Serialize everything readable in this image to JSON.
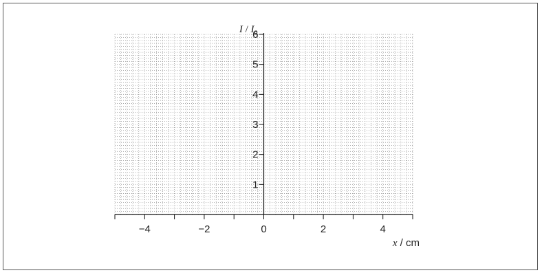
{
  "chart_data": {
    "type": "line",
    "title": "",
    "xlabel": {
      "var": "x",
      "sep": " / ",
      "unit": "cm"
    },
    "ylabel": {
      "var": "I",
      "sep": " / ",
      "unit": "I",
      "subscript": "0"
    },
    "xlim": [
      -5,
      5
    ],
    "ylim": [
      0,
      6
    ],
    "x_ticks": [
      -4,
      -2,
      0,
      2,
      4
    ],
    "x_tick_labels": [
      "−4",
      "−2",
      "0",
      "2",
      "4"
    ],
    "y_ticks": [
      1,
      2,
      3,
      4,
      5,
      6
    ],
    "y_tick_labels": [
      "1",
      "2",
      "3",
      "4",
      "5",
      "6"
    ],
    "grid": true,
    "series": []
  }
}
